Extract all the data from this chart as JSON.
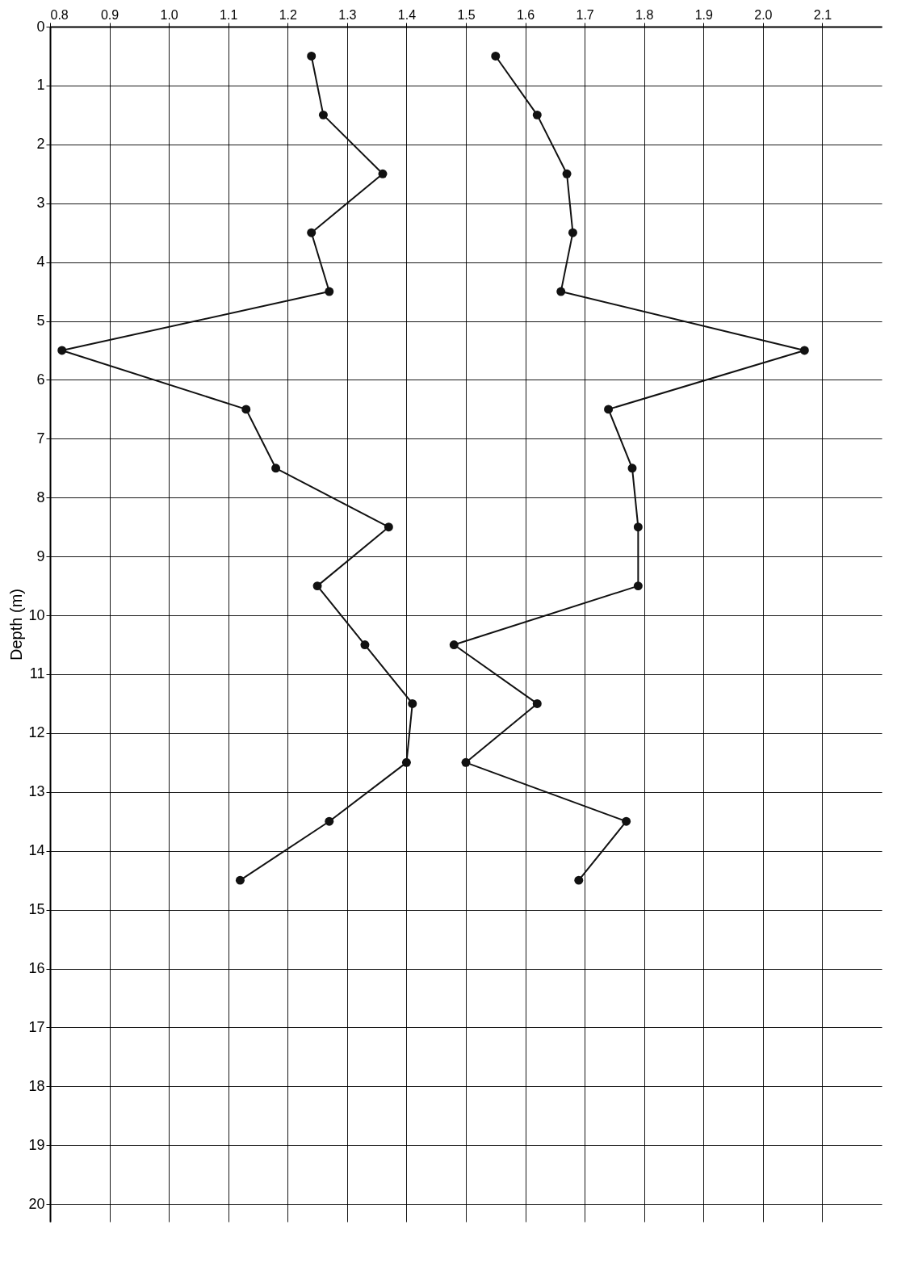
{
  "chart_data": {
    "type": "line",
    "ylabel": "Depth (m)",
    "marker": "circle",
    "line_style": "solid",
    "grid": true,
    "legend": false,
    "xlim": [
      0.8,
      2.2
    ],
    "ylim": [
      20.3,
      0
    ],
    "xticks": [
      0.8,
      0.9,
      {
        "value": 1,
        "label": "1.0"
      },
      1.1,
      1.2,
      1.3,
      1.4,
      1.5,
      1.6,
      1.7,
      1.8,
      1.9,
      {
        "value": 2,
        "label": "2.0"
      },
      2.1
    ],
    "yticks": [
      0,
      1,
      2,
      3,
      4,
      5,
      6,
      7,
      8,
      9,
      10,
      11,
      12,
      13,
      14,
      15,
      16,
      17,
      18,
      19,
      20
    ],
    "series": [
      {
        "color": "#111111",
        "x": [
          1.24,
          1.26,
          1.36,
          1.24,
          1.27,
          0.82,
          1.13,
          1.18,
          1.37,
          1.25,
          1.33,
          1.41,
          1.4,
          1.27,
          1.12
        ],
        "values": [
          0.5,
          1.5,
          2.5,
          3.5,
          4.5,
          5.5,
          6.5,
          7.5,
          8.5,
          9.5,
          10.5,
          11.5,
          12.5,
          13.5,
          14.5
        ]
      },
      {
        "color": "#111111",
        "x": [
          1.55,
          1.62,
          1.67,
          1.68,
          1.66,
          2.07,
          1.74,
          1.78,
          1.79,
          1.79,
          1.48,
          1.62,
          1.5,
          1.77,
          1.69
        ],
        "values": [
          0.5,
          1.5,
          2.5,
          3.5,
          4.5,
          5.5,
          6.5,
          7.5,
          8.5,
          9.5,
          10.5,
          11.5,
          12.5,
          13.5,
          14.5
        ]
      }
    ]
  }
}
